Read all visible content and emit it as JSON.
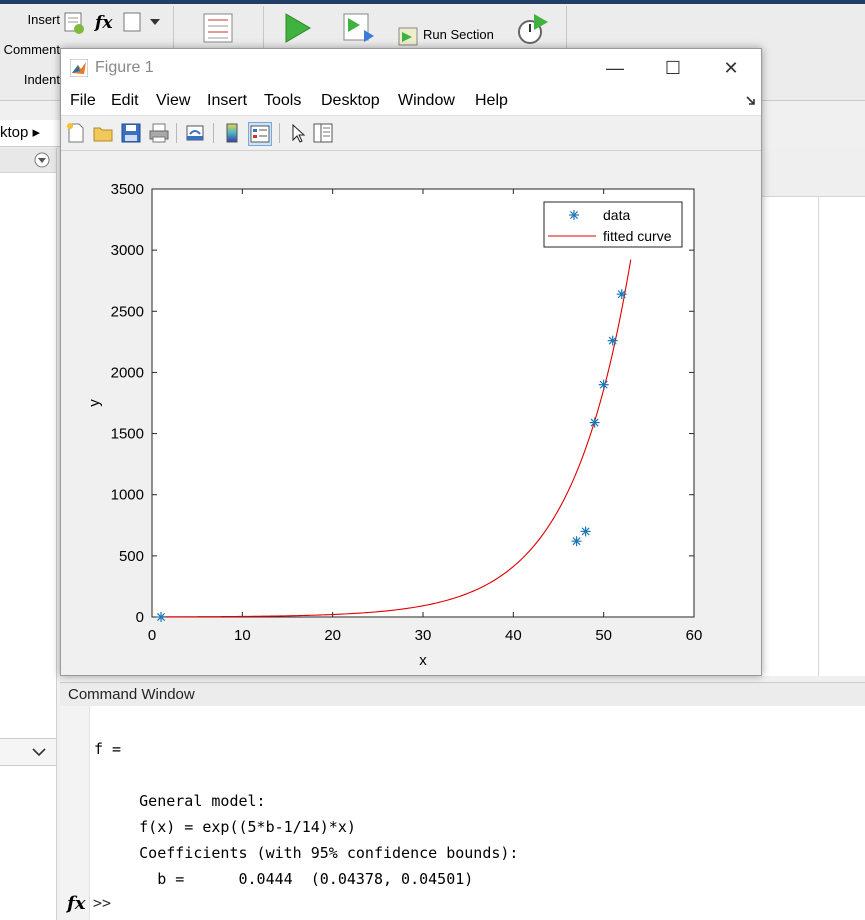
{
  "ribbon": {
    "insert_label": "Insert",
    "comment_label": "Comment",
    "indent_label": "Indent",
    "run_section_label": "Run Section"
  },
  "address": {
    "text": "ktop ▸"
  },
  "figure": {
    "title": "Figure 1",
    "menu": [
      "File",
      "Edit",
      "View",
      "Insert",
      "Tools",
      "Desktop",
      "Window",
      "Help"
    ],
    "minimize": "—",
    "maximize": "☐",
    "close": "✕"
  },
  "chart_data": {
    "type": "scatter",
    "xlabel": "x",
    "ylabel": "y",
    "xlim": [
      0,
      60
    ],
    "ylim": [
      0,
      3500
    ],
    "xticks": [
      0,
      10,
      20,
      30,
      40,
      50,
      60
    ],
    "yticks": [
      0,
      500,
      1000,
      1500,
      2000,
      2500,
      3000,
      3500
    ],
    "grid": false,
    "legend_position": "top-right",
    "series": [
      {
        "name": "data",
        "marker": "*",
        "color": "#1f77b4",
        "x": [
          1,
          47,
          48,
          49,
          50,
          51,
          52
        ],
        "y": [
          0,
          620,
          700,
          1590,
          1900,
          2260,
          2640
        ]
      },
      {
        "name": "fitted curve",
        "color": "#e00000",
        "model": "exp((5*b-1/14)*x)",
        "b": 0.0444,
        "x_range": [
          1,
          53
        ]
      }
    ]
  },
  "command_window": {
    "title": "Command Window",
    "lines": [
      "f =",
      "     General model:",
      "     f(x) = exp((5*b-1/14)*x)",
      "     Coefficients (with 95% confidence bounds):",
      "       b =      0.0444  (0.04378, 0.04501)"
    ],
    "prompt": ">>",
    "fx_label": "fx"
  },
  "colors": {
    "data_marker": "#1f77b4",
    "fit_line": "#e00000",
    "ribbon_bg": "#ececec",
    "title_strip": "#1f3e66"
  }
}
